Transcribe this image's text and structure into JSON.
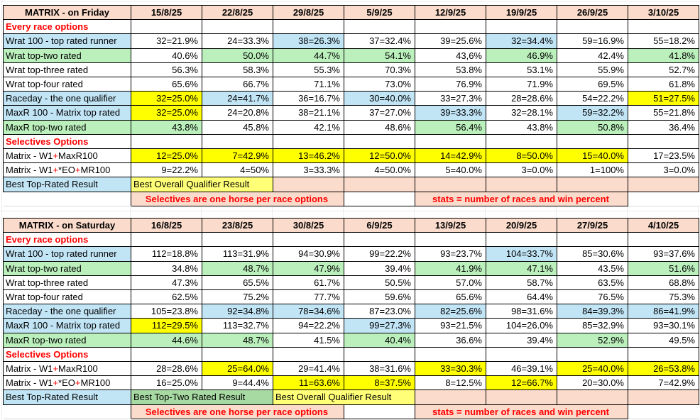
{
  "colors": {
    "peach": "#fbdccc",
    "blue": "#c2e5f6",
    "green": "#bbf0bc",
    "yellow": "#ffff00",
    "pale_yellow": "#ffff78",
    "result_green": "#a7d9a2",
    "red": "#ff0000",
    "grid": "#d9d9d9"
  },
  "tables": [
    {
      "title": "MATRIX - on Friday",
      "dates": [
        "15/8/25",
        "22/8/25",
        "29/8/25",
        "5/9/25",
        "12/9/25",
        "19/9/25",
        "26/9/25",
        "3/10/25"
      ],
      "rows": [
        {
          "type": "banner",
          "label": "Every race options"
        },
        {
          "type": "data",
          "label": "Wrat 100 - top rated runner",
          "label_bg": "blue",
          "cells": [
            {
              "v": "32=21.9%"
            },
            {
              "v": "24=33.3%"
            },
            {
              "v": "38=26.3%",
              "bg": "blue"
            },
            {
              "v": "37=32.4%"
            },
            {
              "v": "39=25.6%"
            },
            {
              "v": "32=34.4%",
              "bg": "blue"
            },
            {
              "v": "59=16.9%"
            },
            {
              "v": "55=18.2%"
            }
          ]
        },
        {
          "type": "data",
          "label": "Wrat top-two rated",
          "label_bg": "green",
          "cells": [
            {
              "v": "40.6%"
            },
            {
              "v": "50.0%",
              "bg": "green"
            },
            {
              "v": "44.7%",
              "bg": "green"
            },
            {
              "v": "54.1%",
              "bg": "green"
            },
            {
              "v": "43,6%"
            },
            {
              "v": "46.9%",
              "bg": "green"
            },
            {
              "v": "42.4%"
            },
            {
              "v": "41.8%",
              "bg": "green"
            }
          ]
        },
        {
          "type": "data",
          "label": "Wrat top-three rated",
          "cells": [
            {
              "v": "56.3%"
            },
            {
              "v": "58.3%"
            },
            {
              "v": "55.3%"
            },
            {
              "v": "70.3%"
            },
            {
              "v": "53.8%"
            },
            {
              "v": "53.1%"
            },
            {
              "v": "55.9%"
            },
            {
              "v": "52.7%"
            }
          ]
        },
        {
          "type": "data",
          "label": "Wrat top-four rated",
          "cells": [
            {
              "v": "65.6%"
            },
            {
              "v": "66.7%"
            },
            {
              "v": "71.1%"
            },
            {
              "v": "73.0%"
            },
            {
              "v": "76.9%"
            },
            {
              "v": "71.9%"
            },
            {
              "v": "69.5%"
            },
            {
              "v": "61.8%"
            }
          ]
        },
        {
          "type": "data",
          "label": "Raceday - the one qualifier",
          "label_bg": "blue",
          "cells": [
            {
              "v": "32=25.0%",
              "bg": "yellow"
            },
            {
              "v": "24=41.7%",
              "bg": "blue"
            },
            {
              "v": "36=16.7%"
            },
            {
              "v": "30=40.0%",
              "bg": "blue"
            },
            {
              "v": "33=27.3%"
            },
            {
              "v": "28=28.6%"
            },
            {
              "v": "54=22.2%"
            },
            {
              "v": "51=27.5%",
              "bg": "yellow"
            }
          ]
        },
        {
          "type": "data",
          "label": "MaxR 100 - Matrix top rated",
          "label_bg": "blue",
          "cells": [
            {
              "v": "32=25.0%",
              "bg": "yellow"
            },
            {
              "v": "24=20.8%"
            },
            {
              "v": "38=21.1%"
            },
            {
              "v": "37=27.0%"
            },
            {
              "v": "39=33.3%",
              "bg": "blue"
            },
            {
              "v": "32=28.1%"
            },
            {
              "v": "59=32.2%",
              "bg": "blue"
            },
            {
              "v": "55=21.8%"
            }
          ]
        },
        {
          "type": "data",
          "label": "MaxR top-two rated",
          "label_bg": "green",
          "cells": [
            {
              "v": "43.8%",
              "bg": "green"
            },
            {
              "v": "45.8%"
            },
            {
              "v": "42.1%"
            },
            {
              "v": "48.6%"
            },
            {
              "v": "56.4%",
              "bg": "green"
            },
            {
              "v": "43.8%"
            },
            {
              "v": "50.8%",
              "bg": "green"
            },
            {
              "v": "36.4%"
            }
          ]
        },
        {
          "type": "banner",
          "label": "Selectives Options"
        },
        {
          "type": "data",
          "label": [
            {
              "t": "Matrix - W1"
            },
            {
              "t": "+",
              "red": true
            },
            {
              "t": "MaxR100"
            }
          ],
          "cells": [
            {
              "v": "12=25.0%",
              "bg": "yellow"
            },
            {
              "v": "7=42.9%",
              "bg": "yellow"
            },
            {
              "v": "13=46.2%",
              "bg": "yellow"
            },
            {
              "v": "12=50.0%",
              "bg": "yellow"
            },
            {
              "v": "14=42.9%",
              "bg": "yellow"
            },
            {
              "v": "8=50.0%",
              "bg": "yellow"
            },
            {
              "v": "15=40.0%",
              "bg": "yellow"
            },
            {
              "v": "17=23.5%"
            }
          ]
        },
        {
          "type": "data",
          "label": [
            {
              "t": "Matrix - W1"
            },
            {
              "t": "+",
              "red": true
            },
            {
              "t": "*EO"
            },
            {
              "t": "+",
              "red": true
            },
            {
              "t": "MR100"
            }
          ],
          "cells": [
            {
              "v": "9=22.2%"
            },
            {
              "v": "4=50%"
            },
            {
              "v": "3=33.3%"
            },
            {
              "v": "4=50.0%"
            },
            {
              "v": "5=40.0%"
            },
            {
              "v": "3=0.0%"
            },
            {
              "v": "1=100%"
            },
            {
              "v": "3=0.0%"
            }
          ]
        },
        {
          "type": "result",
          "cells": [
            {
              "text": "Best Top-Rated Result",
              "bg": "blue"
            },
            {
              "text": "Best Overall Qualifier Result",
              "bg": "pale_yellow",
              "span": 2
            },
            {
              "bg": "peach"
            },
            {
              "bg": "peach"
            },
            {
              "bg": "peach"
            },
            {
              "bg": "peach"
            },
            {
              "bg": "peach"
            },
            {
              "bg": "peach"
            }
          ]
        },
        {
          "type": "stats",
          "cells": [
            {
              "ghost": true
            },
            {
              "text": "Selectives are one horse per race options",
              "bg": "peach",
              "span": 3,
              "red": true,
              "center": true
            },
            {
              "text": "",
              "span": 1
            },
            {
              "text": "stats = number of races and win percent",
              "bg": "peach",
              "span": 3,
              "red": true,
              "center": true
            },
            {
              "ghost": true
            }
          ]
        }
      ]
    },
    {
      "title": "MATRIX - on Saturday",
      "dates": [
        "16/8/25",
        "23/8/25",
        "30/8/25",
        "6/9/25",
        "13/9/25",
        "20/9/25",
        "27/9/25",
        "4/10/25"
      ],
      "rows": [
        {
          "type": "banner",
          "label": "Every race options"
        },
        {
          "type": "data",
          "label": "Wrat 100 - top rated runner",
          "label_bg": "blue",
          "cells": [
            {
              "v": "112=18.8%"
            },
            {
              "v": "113=31.9%"
            },
            {
              "v": "94=30.9%"
            },
            {
              "v": "99=22.2%"
            },
            {
              "v": "93=23.7%"
            },
            {
              "v": "104=33.7%",
              "bg": "blue"
            },
            {
              "v": "85=30.6%"
            },
            {
              "v": "93=37.6%"
            }
          ]
        },
        {
          "type": "data",
          "label": "Wrat top-two rated",
          "label_bg": "green",
          "cells": [
            {
              "v": "34.8%"
            },
            {
              "v": "48.7%",
              "bg": "green"
            },
            {
              "v": "47.9%",
              "bg": "green"
            },
            {
              "v": "39.4%"
            },
            {
              "v": "41.9%",
              "bg": "green"
            },
            {
              "v": "47.1%",
              "bg": "green"
            },
            {
              "v": "43.5%"
            },
            {
              "v": "51.6%",
              "bg": "green"
            }
          ]
        },
        {
          "type": "data",
          "label": "Wrat top-three rated",
          "cells": [
            {
              "v": "47.3%"
            },
            {
              "v": "65.5%"
            },
            {
              "v": "61.7%"
            },
            {
              "v": "50.5%"
            },
            {
              "v": "57.0%"
            },
            {
              "v": "58.7%"
            },
            {
              "v": "63.5%"
            },
            {
              "v": "68.8%"
            }
          ]
        },
        {
          "type": "data",
          "label": "Wrat top-four rated",
          "cells": [
            {
              "v": "62.5%"
            },
            {
              "v": "75.2%"
            },
            {
              "v": "77.7%"
            },
            {
              "v": "59.6%"
            },
            {
              "v": "65.6%"
            },
            {
              "v": "64.4%"
            },
            {
              "v": "76.5%"
            },
            {
              "v": "75.3%"
            }
          ]
        },
        {
          "type": "data",
          "label": "Raceday - the one qualifier",
          "label_bg": "blue",
          "cells": [
            {
              "v": "105=23.8%"
            },
            {
              "v": "92=34.8%",
              "bg": "blue"
            },
            {
              "v": "78=34.6%",
              "bg": "blue"
            },
            {
              "v": "87=23.0%"
            },
            {
              "v": "82=25.6%",
              "bg": "blue"
            },
            {
              "v": "98=31.6%"
            },
            {
              "v": "84=39.3%",
              "bg": "blue"
            },
            {
              "v": "86=41.9%",
              "bg": "blue"
            }
          ]
        },
        {
          "type": "data",
          "label": "MaxR 100 - Matrix top rated",
          "label_bg": "blue",
          "cells": [
            {
              "v": "112=29.5%",
              "bg": "yellow"
            },
            {
              "v": "113=32.7%"
            },
            {
              "v": "94=22.2%"
            },
            {
              "v": "99=27.3%",
              "bg": "blue"
            },
            {
              "v": "93=21.5%"
            },
            {
              "v": "104=26.0%"
            },
            {
              "v": "85=32.9%"
            },
            {
              "v": "93=30.1%"
            }
          ]
        },
        {
          "type": "data",
          "label": "MaxR top-two rated",
          "label_bg": "green",
          "cells": [
            {
              "v": "44.6%",
              "bg": "green"
            },
            {
              "v": "48.7%",
              "bg": "green"
            },
            {
              "v": "41.5%"
            },
            {
              "v": "40.4%",
              "bg": "green"
            },
            {
              "v": "36.6%"
            },
            {
              "v": "39.4%"
            },
            {
              "v": "52.9%",
              "bg": "green"
            },
            {
              "v": "49.5%"
            }
          ]
        },
        {
          "type": "banner",
          "label": "Selectives Options"
        },
        {
          "type": "data",
          "label": [
            {
              "t": "Matrix - W1"
            },
            {
              "t": "+",
              "red": true
            },
            {
              "t": "MaxR100"
            }
          ],
          "cells": [
            {
              "v": "28=28.6%"
            },
            {
              "v": "25=64.0%",
              "bg": "yellow"
            },
            {
              "v": "29=41.4%"
            },
            {
              "v": "38=31.6%"
            },
            {
              "v": "33=30.3%",
              "bg": "yellow"
            },
            {
              "v": "46=39.1%"
            },
            {
              "v": "25=40.0%",
              "bg": "yellow"
            },
            {
              "v": "26=53.8%",
              "bg": "yellow"
            }
          ]
        },
        {
          "type": "data",
          "label": [
            {
              "t": "Matrix - W1"
            },
            {
              "t": "+",
              "red": true
            },
            {
              "t": "*EO"
            },
            {
              "t": "+",
              "red": true
            },
            {
              "t": "MR100"
            }
          ],
          "cells": [
            {
              "v": "16=25.0%"
            },
            {
              "v": "9=44.4%"
            },
            {
              "v": "11=63.6%",
              "bg": "yellow"
            },
            {
              "v": "8=37.5%",
              "bg": "yellow"
            },
            {
              "v": "8=12.5%"
            },
            {
              "v": "12=66.7%",
              "bg": "yellow"
            },
            {
              "v": "20=30.0%"
            },
            {
              "v": "7=42.9%"
            }
          ]
        },
        {
          "type": "result",
          "cells": [
            {
              "text": "Best Top-Rated Result",
              "bg": "blue"
            },
            {
              "text": "Best Top-Two Rated Result",
              "bg": "result_green",
              "span": 2
            },
            {
              "text": "Best Overall Qualifier Result",
              "bg": "pale_yellow",
              "span": 2
            },
            {
              "bg": "peach"
            },
            {
              "bg": "peach"
            },
            {
              "bg": "peach"
            },
            {
              "bg": "peach"
            }
          ]
        },
        {
          "type": "stats",
          "cells": [
            {
              "ghost": true
            },
            {
              "text": "Selectives are one horse per race options",
              "bg": "peach",
              "span": 3,
              "red": true,
              "center": true
            },
            {
              "text": "",
              "span": 1
            },
            {
              "text": "stats = number of races and win percent",
              "bg": "peach",
              "span": 3,
              "red": true,
              "center": true
            },
            {
              "ghost": true
            }
          ]
        }
      ]
    }
  ]
}
